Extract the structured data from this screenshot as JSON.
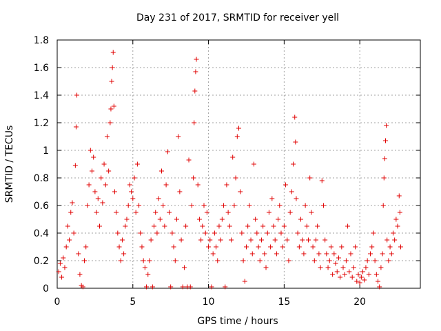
{
  "chart_data": {
    "type": "scatter",
    "title": "Day 231 of 2017, SRMTID for receiver yell",
    "xlabel": "GPS time / hours",
    "ylabel": "SRMTID / TECUs",
    "xlim": [
      0,
      24
    ],
    "ylim": [
      0,
      1.8
    ],
    "xticks": [
      0,
      5,
      10,
      15,
      20
    ],
    "xtick_labels": [
      "0",
      "5",
      "10",
      "15",
      "20"
    ],
    "yticks": [
      0,
      0.2,
      0.4,
      0.6,
      0.8,
      1,
      1.2,
      1.4,
      1.6,
      1.8
    ],
    "ytick_labels": [
      "0",
      "0.2",
      "0.4",
      "0.6",
      "0.8",
      "1",
      "1.2",
      "1.4",
      "1.6",
      "1.8"
    ],
    "grid": true,
    "marker": "+",
    "marker_color": "#e00000",
    "series": [
      {
        "name": "SRMTID",
        "points": [
          [
            0.1,
            0.12
          ],
          [
            0.2,
            0.18
          ],
          [
            0.3,
            0.08
          ],
          [
            0.4,
            0.22
          ],
          [
            0.5,
            0.15
          ],
          [
            0.6,
            0.3
          ],
          [
            0.7,
            0.45
          ],
          [
            0.8,
            0.35
          ],
          [
            0.9,
            0.55
          ],
          [
            1.0,
            0.62
          ],
          [
            1.1,
            0.4
          ],
          [
            1.2,
            0.89
          ],
          [
            1.25,
            1.17
          ],
          [
            1.3,
            1.4
          ],
          [
            1.4,
            0.25
          ],
          [
            1.5,
            0.1
          ],
          [
            1.6,
            0.02
          ],
          [
            1.7,
            0.01
          ],
          [
            1.8,
            0.2
          ],
          [
            1.9,
            0.3
          ],
          [
            2.0,
            0.6
          ],
          [
            2.1,
            0.75
          ],
          [
            2.2,
            1.0
          ],
          [
            2.3,
            0.85
          ],
          [
            2.4,
            0.95
          ],
          [
            2.5,
            0.7
          ],
          [
            2.6,
            0.55
          ],
          [
            2.7,
            0.65
          ],
          [
            2.8,
            0.45
          ],
          [
            2.9,
            0.8
          ],
          [
            3.0,
            0.62
          ],
          [
            3.1,
            0.9
          ],
          [
            3.2,
            0.75
          ],
          [
            3.3,
            1.1
          ],
          [
            3.4,
            0.85
          ],
          [
            3.5,
            1.2
          ],
          [
            3.55,
            1.3
          ],
          [
            3.6,
            1.5
          ],
          [
            3.65,
            1.6
          ],
          [
            3.7,
            1.71
          ],
          [
            3.75,
            1.32
          ],
          [
            3.8,
            0.7
          ],
          [
            3.9,
            0.55
          ],
          [
            4.0,
            0.4
          ],
          [
            4.1,
            0.3
          ],
          [
            4.2,
            0.2
          ],
          [
            4.3,
            0.35
          ],
          [
            4.4,
            0.25
          ],
          [
            4.5,
            0.45
          ],
          [
            4.6,
            0.5
          ],
          [
            4.7,
            0.6
          ],
          [
            4.8,
            0.75
          ],
          [
            4.9,
            0.7
          ],
          [
            5.0,
            0.65
          ],
          [
            5.1,
            0.8
          ],
          [
            5.2,
            0.55
          ],
          [
            5.3,
            0.9
          ],
          [
            5.4,
            0.6
          ],
          [
            5.5,
            0.4
          ],
          [
            5.6,
            0.3
          ],
          [
            5.7,
            0.2
          ],
          [
            5.8,
            0.15
          ],
          [
            5.9,
            0.01
          ],
          [
            6.0,
            0.1
          ],
          [
            6.1,
            0.2
          ],
          [
            6.2,
            0.35
          ],
          [
            6.3,
            0.01
          ],
          [
            6.4,
            0.45
          ],
          [
            6.5,
            0.55
          ],
          [
            6.6,
            0.4
          ],
          [
            6.7,
            0.65
          ],
          [
            6.8,
            0.5
          ],
          [
            6.9,
            0.85
          ],
          [
            7.0,
            0.6
          ],
          [
            7.1,
            0.45
          ],
          [
            7.2,
            0.75
          ],
          [
            7.3,
            0.99
          ],
          [
            7.4,
            0.55
          ],
          [
            7.5,
            0.01
          ],
          [
            7.6,
            0.4
          ],
          [
            7.7,
            0.3
          ],
          [
            7.8,
            0.2
          ],
          [
            7.9,
            0.5
          ],
          [
            8.0,
            1.1
          ],
          [
            8.1,
            0.7
          ],
          [
            8.2,
            0.35
          ],
          [
            8.3,
            0.01
          ],
          [
            8.4,
            0.15
          ],
          [
            8.5,
            0.45
          ],
          [
            8.6,
            0.01
          ],
          [
            8.7,
            0.93
          ],
          [
            8.8,
            0.01
          ],
          [
            8.9,
            0.6
          ],
          [
            9.0,
            0.8
          ],
          [
            9.05,
            1.2
          ],
          [
            9.1,
            1.43
          ],
          [
            9.15,
            1.57
          ],
          [
            9.2,
            1.66
          ],
          [
            9.3,
            0.75
          ],
          [
            9.4,
            0.5
          ],
          [
            9.5,
            0.35
          ],
          [
            9.6,
            0.45
          ],
          [
            9.7,
            0.6
          ],
          [
            9.8,
            0.4
          ],
          [
            9.9,
            0.55
          ],
          [
            10.0,
            0.3
          ],
          [
            10.1,
            0.35
          ],
          [
            10.2,
            0.01
          ],
          [
            10.3,
            0.25
          ],
          [
            10.4,
            0.4
          ],
          [
            10.5,
            0.3
          ],
          [
            10.6,
            0.2
          ],
          [
            10.7,
            0.45
          ],
          [
            10.8,
            0.35
          ],
          [
            10.9,
            0.5
          ],
          [
            11.0,
            0.6
          ],
          [
            11.1,
            0.01
          ],
          [
            11.2,
            0.75
          ],
          [
            11.3,
            0.55
          ],
          [
            11.4,
            0.45
          ],
          [
            11.5,
            0.35
          ],
          [
            11.6,
            0.95
          ],
          [
            11.7,
            0.6
          ],
          [
            11.8,
            0.8
          ],
          [
            11.9,
            1.1
          ],
          [
            12.0,
            1.16
          ],
          [
            12.1,
            0.7
          ],
          [
            12.2,
            0.4
          ],
          [
            12.3,
            0.2
          ],
          [
            12.4,
            0.05
          ],
          [
            12.5,
            0.3
          ],
          [
            12.6,
            0.45
          ],
          [
            12.7,
            0.6
          ],
          [
            12.8,
            0.35
          ],
          [
            12.9,
            0.25
          ],
          [
            13.0,
            0.9
          ],
          [
            13.1,
            0.5
          ],
          [
            13.2,
            0.4
          ],
          [
            13.3,
            0.3
          ],
          [
            13.4,
            0.2
          ],
          [
            13.5,
            0.35
          ],
          [
            13.6,
            0.45
          ],
          [
            13.7,
            0.25
          ],
          [
            13.8,
            0.15
          ],
          [
            13.9,
            0.4
          ],
          [
            14.0,
            0.55
          ],
          [
            14.1,
            0.3
          ],
          [
            14.2,
            0.65
          ],
          [
            14.3,
            0.45
          ],
          [
            14.4,
            0.35
          ],
          [
            14.5,
            0.25
          ],
          [
            14.6,
            0.5
          ],
          [
            14.7,
            0.6
          ],
          [
            14.8,
            0.4
          ],
          [
            14.9,
            0.3
          ],
          [
            15.0,
            0.45
          ],
          [
            15.1,
            0.75
          ],
          [
            15.2,
            0.35
          ],
          [
            15.3,
            0.2
          ],
          [
            15.4,
            0.55
          ],
          [
            15.5,
            0.7
          ],
          [
            15.6,
            0.9
          ],
          [
            15.7,
            1.24
          ],
          [
            15.75,
            1.06
          ],
          [
            15.8,
            0.65
          ],
          [
            15.9,
            0.4
          ],
          [
            16.0,
            0.3
          ],
          [
            16.1,
            0.5
          ],
          [
            16.2,
            0.35
          ],
          [
            16.3,
            0.25
          ],
          [
            16.4,
            0.6
          ],
          [
            16.5,
            0.45
          ],
          [
            16.6,
            0.35
          ],
          [
            16.7,
            0.8
          ],
          [
            16.8,
            0.55
          ],
          [
            16.9,
            0.3
          ],
          [
            17.0,
            0.2
          ],
          [
            17.1,
            0.35
          ],
          [
            17.2,
            0.45
          ],
          [
            17.3,
            0.25
          ],
          [
            17.4,
            0.15
          ],
          [
            17.5,
            0.78
          ],
          [
            17.6,
            0.6
          ],
          [
            17.7,
            0.35
          ],
          [
            17.8,
            0.25
          ],
          [
            17.9,
            0.15
          ],
          [
            18.0,
            0.2
          ],
          [
            18.1,
            0.3
          ],
          [
            18.2,
            0.1
          ],
          [
            18.3,
            0.25
          ],
          [
            18.4,
            0.18
          ],
          [
            18.5,
            0.12
          ],
          [
            18.6,
            0.22
          ],
          [
            18.7,
            0.08
          ],
          [
            18.8,
            0.3
          ],
          [
            18.9,
            0.15
          ],
          [
            19.0,
            0.1
          ],
          [
            19.1,
            0.2
          ],
          [
            19.2,
            0.45
          ],
          [
            19.3,
            0.12
          ],
          [
            19.4,
            0.25
          ],
          [
            19.5,
            0.08
          ],
          [
            19.6,
            0.15
          ],
          [
            19.7,
            0.3
          ],
          [
            19.8,
            0.05
          ],
          [
            19.9,
            0.1
          ],
          [
            20.0,
            0.04
          ],
          [
            20.1,
            0.08
          ],
          [
            20.2,
            0.12
          ],
          [
            20.3,
            0.06
          ],
          [
            20.4,
            0.15
          ],
          [
            20.5,
            0.2
          ],
          [
            20.6,
            0.1
          ],
          [
            20.7,
            0.25
          ],
          [
            20.8,
            0.3
          ],
          [
            20.9,
            0.4
          ],
          [
            21.0,
            0.2
          ],
          [
            21.1,
            0.1
          ],
          [
            21.2,
            0.05
          ],
          [
            21.3,
            0.01
          ],
          [
            21.4,
            0.15
          ],
          [
            21.5,
            0.25
          ],
          [
            21.55,
            0.6
          ],
          [
            21.6,
            0.8
          ],
          [
            21.65,
            0.94
          ],
          [
            21.7,
            1.07
          ],
          [
            21.75,
            1.18
          ],
          [
            21.8,
            0.35
          ],
          [
            21.9,
            0.2
          ],
          [
            22.0,
            0.3
          ],
          [
            22.1,
            0.25
          ],
          [
            22.2,
            0.4
          ],
          [
            22.3,
            0.35
          ],
          [
            22.4,
            0.5
          ],
          [
            22.5,
            0.45
          ],
          [
            22.6,
            0.67
          ],
          [
            22.65,
            0.55
          ],
          [
            22.7,
            0.3
          ]
        ]
      }
    ]
  }
}
